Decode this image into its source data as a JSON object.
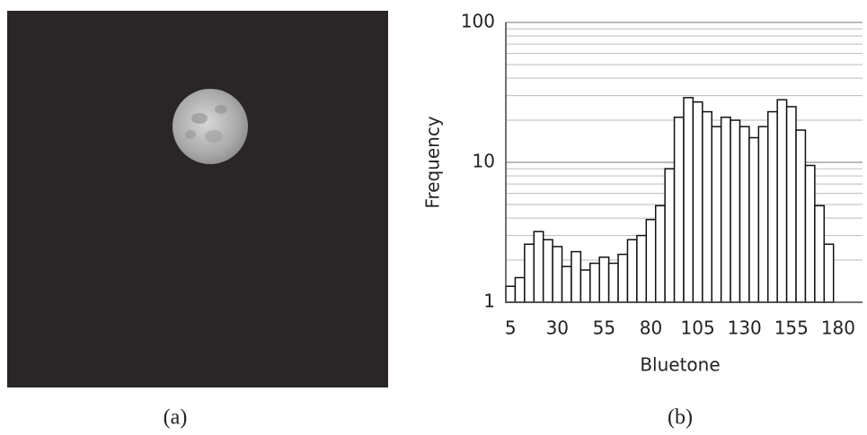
{
  "captions": [
    "(a)",
    "(b)"
  ],
  "chart_data": {
    "type": "histogram",
    "x_label": "Bluetone",
    "y_label": "Frequency",
    "bins": [
      2.5,
      7.5,
      12.5,
      17.5,
      22.5,
      27.5,
      32.5,
      37.5,
      42.5,
      47.5,
      52.5,
      57.5,
      62.5,
      67.5,
      72.5,
      77.5,
      82.5,
      87.5,
      92.5,
      97.5,
      102.5,
      107.5,
      112.5,
      117.5,
      122.5,
      127.5,
      132.5,
      137.5,
      142.5,
      147.5,
      152.5,
      157.5,
      162.5,
      167.5,
      172.5,
      177.5
    ],
    "values": [
      1.3,
      1.5,
      2.6,
      3.2,
      2.8,
      2.5,
      1.8,
      2.3,
      1.7,
      1.9,
      2.1,
      1.9,
      2.2,
      2.8,
      3.0,
      3.9,
      4.9,
      9,
      21,
      29,
      27,
      23,
      18,
      21,
      20,
      18,
      15,
      18,
      23,
      28,
      25,
      17,
      9.5,
      4.9,
      2.6
    ],
    "color": "#ffffff",
    "xlim": [
      2.5,
      193
    ],
    "xticks": [
      5,
      30,
      55,
      80,
      105,
      130,
      155,
      180
    ],
    "ylim": [
      1,
      100
    ],
    "yticks": [
      1,
      10,
      100
    ],
    "yticks_minor": [
      2,
      3,
      4,
      5,
      6,
      7,
      8,
      9,
      20,
      30,
      40,
      50,
      60,
      70,
      80,
      90
    ],
    "log_y": true,
    "grid": true
  }
}
